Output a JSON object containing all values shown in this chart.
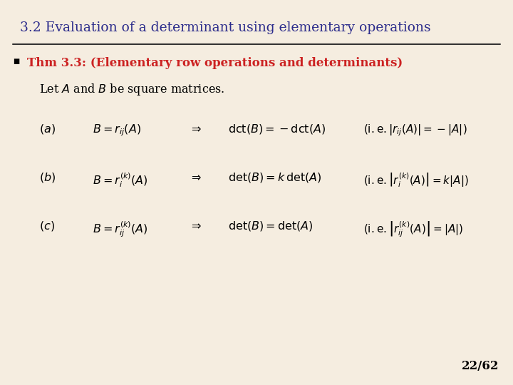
{
  "title": "3.2 Evaluation of a determinant using elementary operations",
  "title_color": "#2B2B8B",
  "background_color": "#F5EDE0",
  "thm_text": "Thm 3.3: (Elementary row operations and determinants)",
  "thm_color": "#CC2222",
  "page_number": "22/62",
  "title_fontsize": 13.5,
  "thm_fontsize": 12.0,
  "body_fontsize": 11.5,
  "small_fontsize": 10.5
}
